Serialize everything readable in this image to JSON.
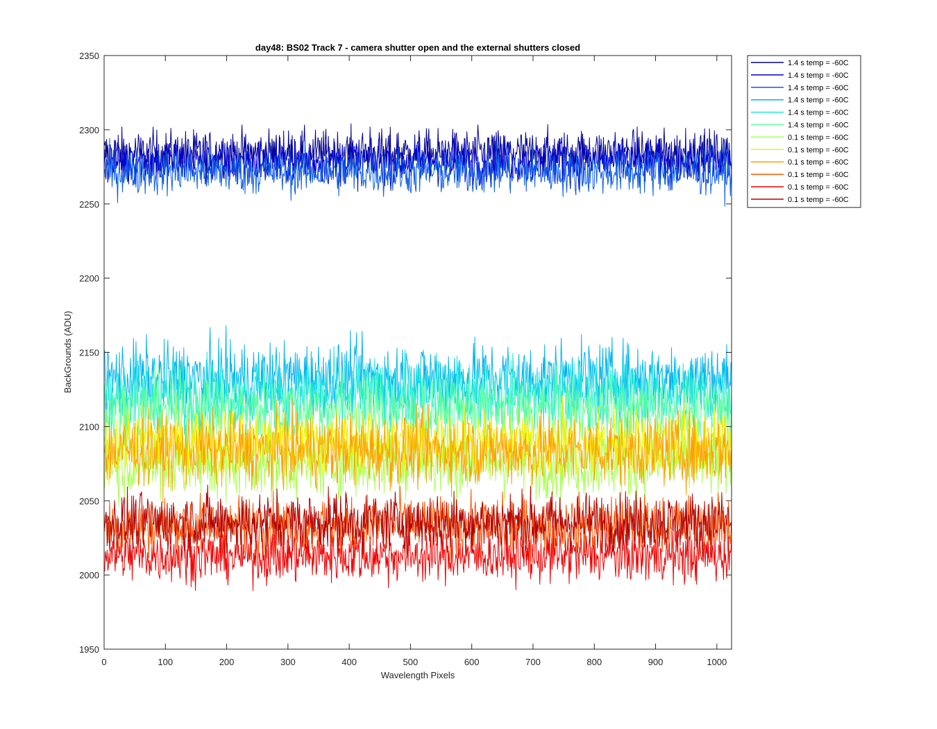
{
  "chart_data": {
    "type": "line",
    "title": "day48: BS02  Track 7 - camera shutter open and the external shutters closed",
    "xlabel": "Wavelength Pixels",
    "ylabel": "BackGrounds (ADU)",
    "xlim": [
      0,
      1024
    ],
    "ylim": [
      1950,
      2350
    ],
    "xticks": [
      0,
      100,
      200,
      300,
      400,
      500,
      600,
      700,
      800,
      900,
      1000
    ],
    "yticks": [
      1950,
      2000,
      2050,
      2100,
      2150,
      2200,
      2250,
      2300,
      2350
    ],
    "grid": false,
    "legend_position": "outside-top-right",
    "series": [
      {
        "name": "1.4 s temp = -60C",
        "color": "#00008f",
        "mean": 2284,
        "noise": 8
      },
      {
        "name": "1.4 s temp = -60C",
        "color": "#0000d0",
        "mean": 2279,
        "noise": 8
      },
      {
        "name": "1.4 s temp = -60C",
        "color": "#0a5ce8",
        "mean": 2272,
        "noise": 8
      },
      {
        "name": "1.4 s temp = -60C",
        "color": "#00b4ef",
        "mean": 2133,
        "noise": 12
      },
      {
        "name": "1.4 s temp = -60C",
        "color": "#20e8e0",
        "mean": 2122,
        "noise": 12
      },
      {
        "name": "1.4 s temp = -60C",
        "color": "#60ff9f",
        "mean": 2112,
        "noise": 12
      },
      {
        "name": "0.1 s temp = -60C",
        "color": "#a8ff50",
        "mean": 2076,
        "noise": 12
      },
      {
        "name": "0.1 s temp = -60C",
        "color": "#f0f000",
        "mean": 2090,
        "noise": 12
      },
      {
        "name": "0.1 s temp = -60C",
        "color": "#ffa000",
        "mean": 2084,
        "noise": 12
      },
      {
        "name": "0.1 s temp = -60C",
        "color": "#ff5500",
        "mean": 2033,
        "noise": 10
      },
      {
        "name": "0.1 s temp = -60C",
        "color": "#f00000",
        "mean": 2013,
        "noise": 9
      },
      {
        "name": "0.1 s temp = -60C",
        "color": "#b00000",
        "mean": 2036,
        "noise": 10
      }
    ]
  }
}
